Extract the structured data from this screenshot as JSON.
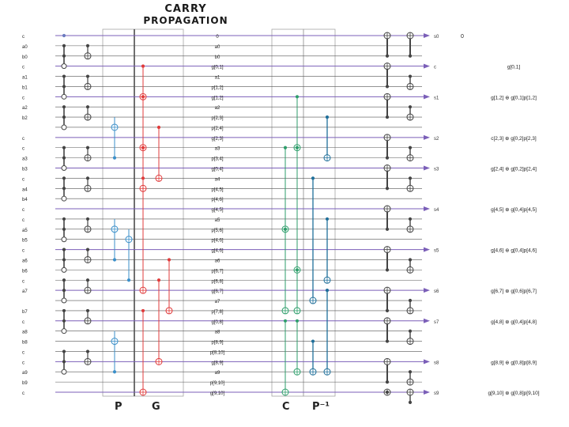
{
  "title": {
    "line1": "CARRY",
    "line2": "PROPAGATION"
  },
  "sections": {
    "p": "P",
    "g": "G",
    "c": "C",
    "p_inv": "P⁻¹"
  },
  "left_labels": [
    "c",
    "a0",
    "b0",
    "c",
    "a1",
    "b1",
    "c",
    "a2",
    "b2",
    "c",
    "c",
    "a3",
    "b3",
    "c",
    "a4",
    "b4",
    "c",
    "c",
    "a5",
    "b5",
    "c",
    "a6",
    "b6",
    "c",
    "a7",
    "b7",
    "c",
    "a8",
    "b8",
    "c",
    "c",
    "a9",
    "b9",
    "c"
  ],
  "mid_labels": [
    "0",
    "a0",
    "b0",
    "g[0,1]",
    "a1",
    "p[1,2]",
    "g[1,2]",
    "a2",
    "p[2,3]",
    "p[2,4]",
    "g[2,3]",
    "a3",
    "p[3,4]",
    "g[0,4]",
    "a4",
    "p[4,5]",
    "p[4,6]",
    "g[4,5]",
    "a5",
    "p[5,6]",
    "p[4,6]",
    "g[4,6]",
    "a6",
    "p[6,7]",
    "p[6,8]",
    "g[6,7]",
    "a7",
    "p[7,8]",
    "g[0,8]",
    "a8",
    "p[8,9]",
    "p[8,10]",
    "g[8,9]",
    "a9",
    "p[9,10]",
    "g[9,10]"
  ],
  "outputs": [
    {
      "name": "s0",
      "extra": "0"
    },
    {
      "name": "c",
      "expr": "g[0,1]"
    },
    {
      "name": "s1",
      "expr": "g[1,2] ⊕ g[0,1]p[1,2]"
    },
    {
      "name": "s2",
      "expr": "c[2,3] ⊕ g[0,2]p[2,3]"
    },
    {
      "name": "s3",
      "expr": "g[2,4] ⊕ g[0,2]p[2,4]"
    },
    {
      "name": "s4",
      "expr": "g[4,5] ⊕ g[0,4]p[4,5]"
    },
    {
      "name": "s5",
      "expr": "g[4,6] ⊕ g[0,4]p[4,6]"
    },
    {
      "name": "s6",
      "expr": "g[6,7] ⊕ g[0,6]p[6,7]"
    },
    {
      "name": "s7",
      "expr": "g[4,8] ⊕ g[0,4]p[4,8]"
    },
    {
      "name": "s8",
      "expr": "g[8,9] ⊕ g[0,8]p[8,9]"
    },
    {
      "name": "s9",
      "expr": "g[9,10] ⊕ g[0,8]p[9,10]"
    }
  ],
  "colors": {
    "wire": "#555555",
    "section_p": "#3a8fc9",
    "section_g": "#e03b3b",
    "section_c": "#2e9e6b",
    "section_pinv": "#1f6f9a",
    "mod": "#444444",
    "box": "#999999",
    "arrow": "#7b5fb8"
  }
}
